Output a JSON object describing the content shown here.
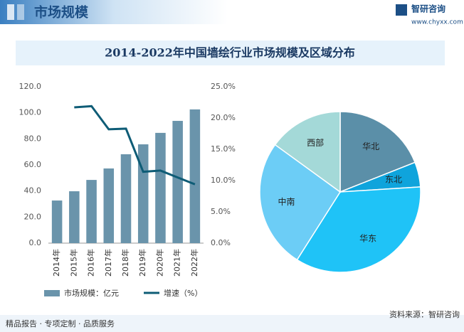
{
  "header": {
    "section": "市场规模",
    "brand": "智研咨询",
    "url": "www.chyxx.com"
  },
  "chart_data": [
    {
      "type": "combo",
      "title": "2014-2022年中国墙绘行业市场规模及区域分布",
      "categories": [
        "2014年",
        "2015年",
        "2016年",
        "2017年",
        "2018年",
        "2019年",
        "2020年",
        "2021年",
        "2022年"
      ],
      "series": [
        {
          "name": "市场规模：亿元",
          "type": "bar",
          "axis": "y",
          "color": "#6a94ab",
          "values": [
            32.7,
            39.8,
            48.5,
            57.3,
            68.2,
            75.8,
            84.6,
            93.8,
            102.6
          ]
        },
        {
          "name": "增速（%）",
          "type": "line",
          "axis": "y2",
          "color": "#0e5c76",
          "values": [
            null,
            21.7,
            21.9,
            18.2,
            18.3,
            11.4,
            11.6,
            10.5,
            9.4
          ]
        }
      ],
      "ylim": [
        0,
        120
      ],
      "yticks": [
        {
          "value": 0,
          "label": "0.0"
        },
        {
          "value": 20,
          "label": "20.0"
        },
        {
          "value": 40,
          "label": "40.0"
        },
        {
          "value": 60,
          "label": "60.0"
        },
        {
          "value": 80,
          "label": "80.0"
        },
        {
          "value": 100,
          "label": "100.0"
        },
        {
          "value": 120,
          "label": "120.0"
        }
      ],
      "y2lim": [
        0,
        25
      ],
      "y2ticks": [
        {
          "value": 0,
          "label": "0.0%"
        },
        {
          "value": 5,
          "label": "5.0%"
        },
        {
          "value": 10,
          "label": "10.0%"
        },
        {
          "value": 15,
          "label": "15.0%"
        },
        {
          "value": 20,
          "label": "20.0%"
        },
        {
          "value": 25,
          "label": "25.0%"
        }
      ],
      "legend": "bottom"
    },
    {
      "type": "pie",
      "categories": [
        "华北",
        "东北",
        "华东",
        "中南",
        "西部"
      ],
      "values": [
        19,
        5,
        35,
        26,
        15
      ],
      "colors": [
        "#5b8fa8",
        "#0fa4dc",
        "#1fc3f7",
        "#6ccdf6",
        "#a4d9d8"
      ]
    }
  ],
  "footer": {
    "left": "精品报告 · 专项定制 · 品质服务",
    "source": "资料来源：智研咨询"
  }
}
